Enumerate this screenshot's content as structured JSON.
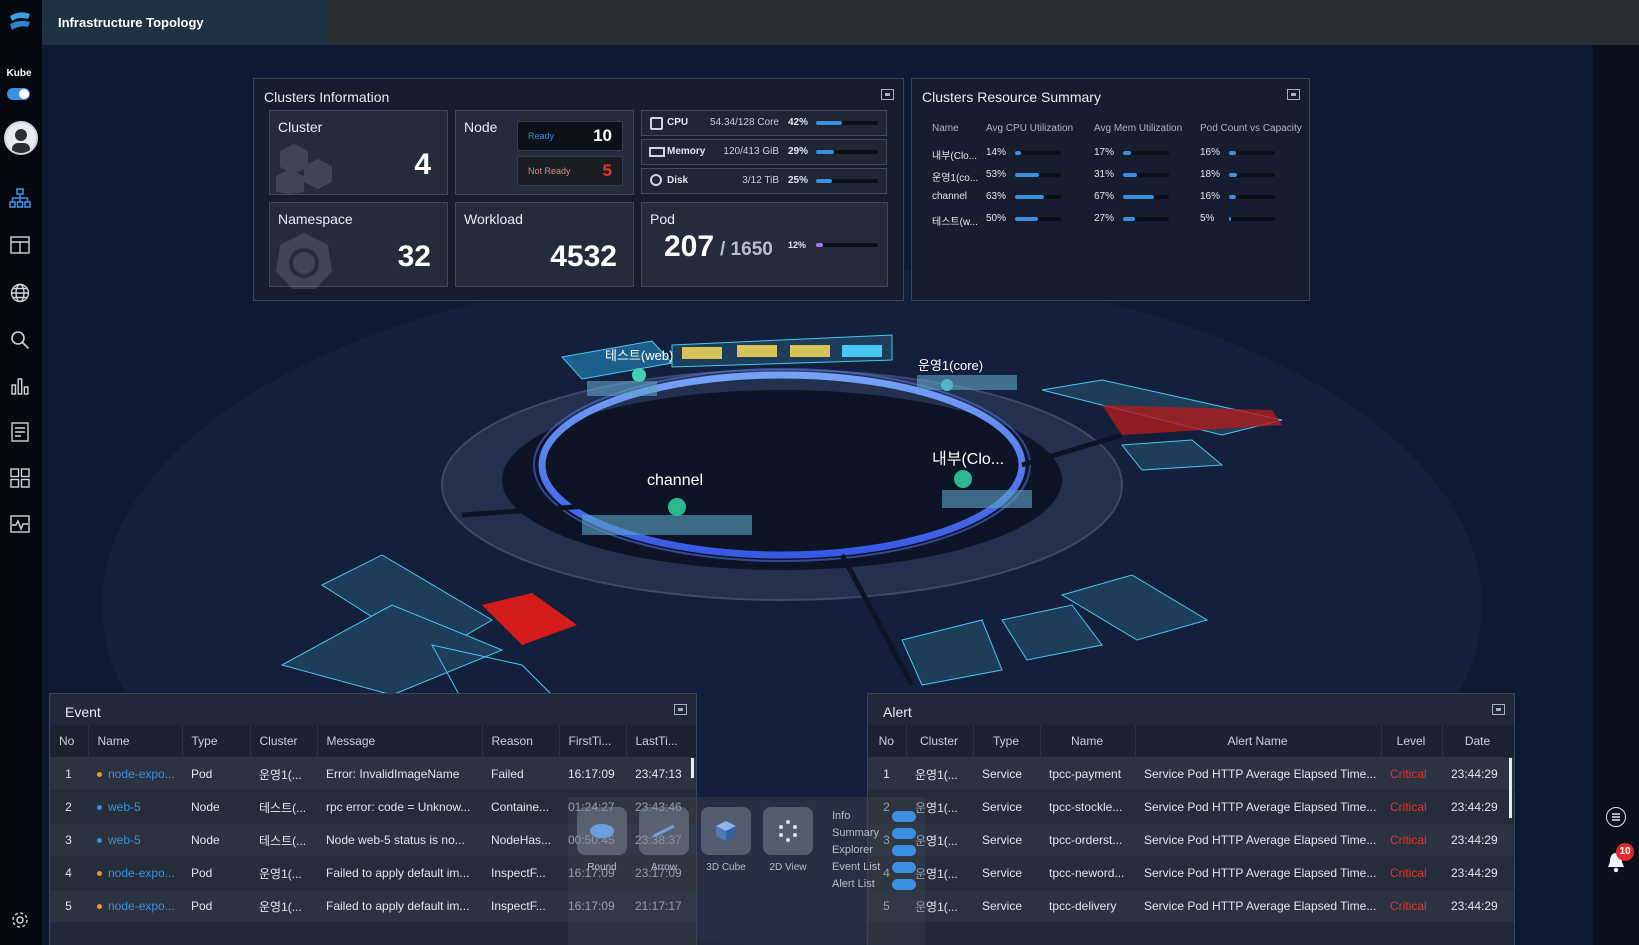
{
  "app": {
    "tab_title": "Infrastructure Topology",
    "kube_label": "Kube"
  },
  "colors": {
    "accent": "#3b8fe0",
    "critical": "#e0352b",
    "background": "#0e1a33"
  },
  "sidebar": {
    "icons": [
      "topology-icon",
      "layout-icon",
      "globe-icon",
      "search-icon",
      "bar-chart-icon",
      "report-icon",
      "grid-icon",
      "monitor-icon"
    ],
    "kube_toggle_on": true
  },
  "clusters_info": {
    "title": "Clusters Information",
    "cluster": {
      "label": "Cluster",
      "value": "4"
    },
    "node": {
      "label": "Node",
      "ready_label": "Ready",
      "ready_value": "10",
      "not_ready_label": "Not Ready",
      "not_ready_value": "5"
    },
    "namespace": {
      "label": "Namespace",
      "value": "32"
    },
    "workload": {
      "label": "Workload",
      "value": "4532"
    },
    "pod": {
      "label": "Pod",
      "value": "207",
      "capacity": "/ 1650",
      "percent": "12%",
      "ratio": 0.12
    },
    "resources": [
      {
        "name": "CPU",
        "detail": "54.34/128 Core",
        "percent": "42%",
        "ratio": 0.42,
        "icon": "cpu-icon"
      },
      {
        "name": "Memory",
        "detail": "120/413 GiB",
        "percent": "29%",
        "ratio": 0.29,
        "icon": "memory-icon"
      },
      {
        "name": "Disk",
        "detail": "3/12 TiB",
        "percent": "25%",
        "ratio": 0.25,
        "icon": "disk-icon"
      }
    ]
  },
  "resource_summary": {
    "title": "Clusters Resource Summary",
    "headers": [
      "Name",
      "Avg CPU Utilization",
      "Avg Mem Utilization",
      "Pod Count vs Capacity"
    ],
    "rows": [
      {
        "name": "내부(Clo...",
        "cpu": "14%",
        "cpu_r": 0.14,
        "mem": "17%",
        "mem_r": 0.17,
        "pod": "16%",
        "pod_r": 0.16
      },
      {
        "name": "운영1(co...",
        "cpu": "53%",
        "cpu_r": 0.53,
        "mem": "31%",
        "mem_r": 0.31,
        "pod": "18%",
        "pod_r": 0.18
      },
      {
        "name": "channel",
        "cpu": "63%",
        "cpu_r": 0.63,
        "mem": "67%",
        "mem_r": 0.67,
        "pod": "16%",
        "pod_r": 0.16
      },
      {
        "name": "테스트(w...",
        "cpu": "50%",
        "cpu_r": 0.5,
        "mem": "27%",
        "mem_r": 0.27,
        "pod": "5%",
        "pod_r": 0.05
      }
    ]
  },
  "topology": {
    "labels": [
      "테스트(web)",
      "운영1(core)",
      "내부(Clo...",
      "channel"
    ]
  },
  "event": {
    "title": "Event",
    "headers": [
      "No",
      "Name",
      "Type",
      "Cluster",
      "Message",
      "Reason",
      "FirstTi...",
      "LastTi..."
    ],
    "rows": [
      [
        "1",
        "node-expo...",
        "Pod",
        "운영1(...",
        "Error: InvalidImageName",
        "Failed",
        "16:17:09",
        "23:47:13"
      ],
      [
        "2",
        "web-5",
        "Node",
        "테스트(...",
        "rpc error: code = Unknow...",
        "Containe...",
        "01:24:27",
        "23:43:46"
      ],
      [
        "3",
        "web-5",
        "Node",
        "테스트(...",
        "Node web-5 status is no...",
        "NodeHas...",
        "00:50:45",
        "23:38:37"
      ],
      [
        "4",
        "node-expo...",
        "Pod",
        "운영1(...",
        "Failed to apply default im...",
        "InspectF...",
        "16:17:09",
        "23:17:09"
      ],
      [
        "5",
        "node-expo...",
        "Pod",
        "운영1(...",
        "Failed to apply default im...",
        "InspectF...",
        "16:17:09",
        "21:17:17"
      ]
    ],
    "dot_colors": [
      "#e89b2a",
      "#3e8fdc",
      "#3e8fdc",
      "#e89b2a",
      "#e89b2a"
    ]
  },
  "alert": {
    "title": "Alert",
    "headers": [
      "No",
      "Cluster",
      "Type",
      "Name",
      "Alert Name",
      "Level",
      "Date"
    ],
    "rows": [
      [
        "1",
        "운영1(...",
        "Service",
        "tpcc-payment",
        "Service Pod HTTP Average Elapsed Time...",
        "Critical",
        "23:44:29"
      ],
      [
        "2",
        "운영1(...",
        "Service",
        "tpcc-stockle...",
        "Service Pod HTTP Average Elapsed Time...",
        "Critical",
        "23:44:29"
      ],
      [
        "3",
        "운영1(...",
        "Service",
        "tpcc-orderst...",
        "Service Pod HTTP Average Elapsed Time...",
        "Critical",
        "23:44:29"
      ],
      [
        "4",
        "운영1(...",
        "Service",
        "tpcc-neword...",
        "Service Pod HTTP Average Elapsed Time...",
        "Critical",
        "23:44:29"
      ],
      [
        "5",
        "운영1(...",
        "Service",
        "tpcc-delivery",
        "Service Pod HTTP Average Elapsed Time...",
        "Critical",
        "23:44:29"
      ]
    ]
  },
  "view_controls": {
    "buttons": [
      {
        "label": "Round",
        "icon": "round-view-icon"
      },
      {
        "label": "Arrow",
        "icon": "arrow-view-icon"
      },
      {
        "label": "3D Cube",
        "icon": "cube-view-icon"
      },
      {
        "label": "2D View",
        "icon": "dots-view-icon"
      }
    ],
    "toggles": [
      "Info",
      "Summary",
      "Explorer",
      "Event List",
      "Alert List"
    ]
  },
  "notification_count": "10"
}
